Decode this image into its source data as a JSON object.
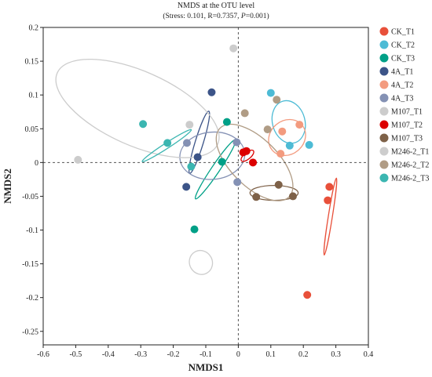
{
  "title_line1": "NMDS at the OTU level",
  "stats": {
    "prefix": "(Stress: 0.101, R=0.7357, ",
    "p_label": "P",
    "p_value": "=0.001)"
  },
  "chart_data": {
    "type": "scatter",
    "xlabel": "NMDS1",
    "ylabel": "NMDS2",
    "xlim": [
      -0.6,
      0.4
    ],
    "ylim": [
      -0.27,
      0.2
    ],
    "xticks": [
      "-0.6",
      "-0.5",
      "-0.4",
      "-0.3",
      "-0.2",
      "-0.1",
      "0",
      "0.1",
      "0.2",
      "0.3",
      "0.4"
    ],
    "yticks": [
      "0.2",
      "0.15",
      "0.1",
      "0.05",
      "0",
      "-0.05",
      "-0.1",
      "-0.15",
      "-0.2",
      "-0.25"
    ],
    "reference_lines": {
      "x": 0,
      "y": 0,
      "style": "dashed"
    },
    "legend_position": "right",
    "series": [
      {
        "name": "CK_T1",
        "color": "#e8503a",
        "points": [
          [
            0.28,
            -0.036
          ],
          [
            0.275,
            -0.056
          ],
          [
            0.212,
            -0.196
          ]
        ],
        "ellipse": {
          "cx": 0.283,
          "cy": -0.08,
          "rx": 0.12,
          "ry": 0.003,
          "angle_deg": -81
        }
      },
      {
        "name": "CK_T2",
        "color": "#4dbbd5",
        "points": [
          [
            0.1,
            0.103
          ],
          [
            0.158,
            0.025
          ],
          [
            0.218,
            0.026
          ]
        ],
        "ellipse": {
          "cx": 0.155,
          "cy": 0.06,
          "rx": 0.05,
          "ry": 0.032,
          "angle_deg": -15
        }
      },
      {
        "name": "CK_T3",
        "color": "#00a087",
        "points": [
          [
            -0.035,
            0.06
          ],
          [
            -0.05,
            0.001
          ],
          [
            -0.135,
            -0.099
          ]
        ],
        "ellipse": {
          "cx": -0.07,
          "cy": -0.01,
          "rx": 0.11,
          "ry": 0.006,
          "angle_deg": -56
        }
      },
      {
        "name": "4A_T1",
        "color": "#3c5488",
        "points": [
          [
            -0.082,
            0.104
          ],
          [
            -0.125,
            0.008
          ],
          [
            -0.16,
            -0.036
          ]
        ],
        "ellipse": {
          "cx": -0.12,
          "cy": 0.03,
          "rx": 0.1,
          "ry": 0.006,
          "angle_deg": -73
        }
      },
      {
        "name": "4A_T2",
        "color": "#f39b7f",
        "points": [
          [
            0.135,
            0.046
          ],
          [
            0.188,
            0.056
          ],
          [
            0.13,
            0.013
          ]
        ],
        "ellipse": {
          "cx": 0.15,
          "cy": 0.037,
          "rx": 0.06,
          "ry": 0.025,
          "angle_deg": -40
        }
      },
      {
        "name": "4A_T3",
        "color": "#8491b4",
        "points": [
          [
            -0.158,
            0.029
          ],
          [
            -0.005,
            0.03
          ],
          [
            -0.003,
            -0.029
          ]
        ],
        "ellipse": {
          "cx": -0.08,
          "cy": 0.01,
          "rx": 0.1,
          "ry": 0.035,
          "angle_deg": -5
        }
      },
      {
        "name": "M107_T1",
        "color": "#cccccc",
        "points": [
          [
            -0.493,
            0.004
          ],
          [
            -0.15,
            0.056
          ],
          [
            -0.015,
            0.169
          ]
        ],
        "ellipse": {
          "cx": -0.31,
          "cy": 0.08,
          "rx": 0.27,
          "ry": 0.055,
          "angle_deg": 24
        }
      },
      {
        "name": "M107_T2",
        "color": "#dc0000",
        "points": [
          [
            0.025,
            0.017
          ],
          [
            0.015,
            0.015
          ],
          [
            0.045,
            0.0
          ]
        ],
        "ellipse": {
          "cx": 0.028,
          "cy": 0.01,
          "rx": 0.024,
          "ry": 0.005,
          "angle_deg": -40
        }
      },
      {
        "name": "M107_T3",
        "color": "#7e6148",
        "points": [
          [
            0.055,
            -0.051
          ],
          [
            0.124,
            -0.033
          ],
          [
            0.168,
            -0.05
          ]
        ],
        "ellipse": {
          "cx": 0.11,
          "cy": -0.045,
          "rx": 0.074,
          "ry": 0.011,
          "angle_deg": 0
        }
      },
      {
        "name": "M246-2_T1",
        "color": "#cdcdcd",
        "points": [],
        "ellipse": {
          "cx": -0.115,
          "cy": -0.148,
          "rx": 0.035,
          "ry": 0.018,
          "angle_deg": -30
        }
      },
      {
        "name": "M246-2_T2",
        "color": "#b09c85",
        "points": [
          [
            0.02,
            0.073
          ],
          [
            0.09,
            0.049
          ],
          [
            0.118,
            0.093
          ]
        ],
        "ellipse": {
          "cx": 0.05,
          "cy": 0.0,
          "rx": 0.15,
          "ry": 0.035,
          "angle_deg": 45
        }
      },
      {
        "name": "M246-2_T3",
        "color": "#3bb6b1",
        "points": [
          [
            -0.293,
            0.057
          ],
          [
            -0.218,
            0.029
          ],
          [
            -0.145,
            -0.006
          ]
        ],
        "ellipse": {
          "cx": -0.22,
          "cy": 0.025,
          "rx": 0.09,
          "ry": 0.004,
          "angle_deg": -33
        }
      }
    ]
  }
}
